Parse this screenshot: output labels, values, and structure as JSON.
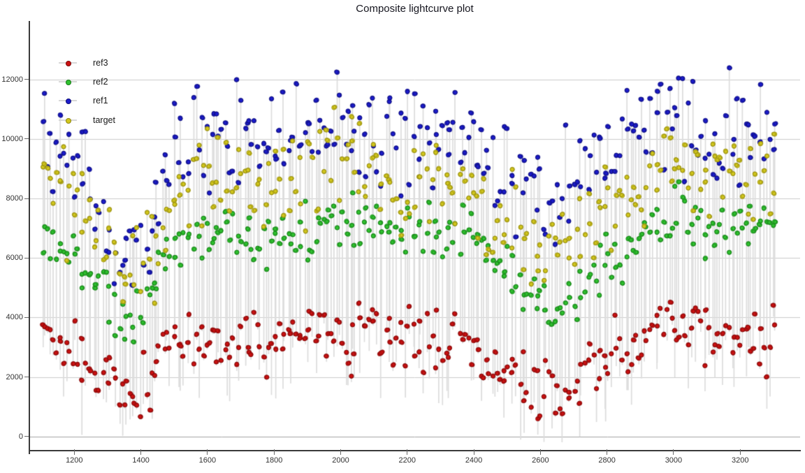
{
  "chart_data": {
    "type": "scatter",
    "title": "Composite lightcurve plot",
    "x_axis": {
      "ticks": [
        1200,
        1400,
        1600,
        1800,
        2000,
        2200,
        2400,
        2600,
        2800,
        3000,
        3200
      ],
      "xlim": [
        1065,
        3380
      ],
      "grid": false
    },
    "y_axis": {
      "ticks": [
        0,
        2000,
        4000,
        6000,
        8000,
        10000,
        12000
      ],
      "ylim": [
        -470,
        13960
      ],
      "grid": true
    },
    "legend": {
      "position": "top-left-inside",
      "items": [
        {
          "label": "ref3",
          "series": "ref3"
        },
        {
          "label": "ref2",
          "series": "ref2"
        },
        {
          "label": "ref1",
          "series": "ref1"
        },
        {
          "label": "target",
          "series": "target"
        }
      ]
    },
    "trend_x": [
      1105,
      1150,
      1200,
      1250,
      1300,
      1340,
      1380,
      1420,
      1460,
      1520,
      1580,
      1640,
      1700,
      1760,
      1820,
      1880,
      1940,
      2000,
      2060,
      2120,
      2180,
      2240,
      2300,
      2360,
      2420,
      2470,
      2520,
      2570,
      2620,
      2670,
      2720,
      2780,
      2840,
      2900,
      2960,
      3020,
      3080,
      3140,
      3200,
      3255,
      3305
    ],
    "series": [
      {
        "name": "ref3",
        "color": "#cc1111",
        "edge": "#7d0a0a",
        "sigma": 550,
        "trend_y": [
          3600,
          3300,
          2900,
          2300,
          1800,
          1400,
          1200,
          1900,
          2800,
          3100,
          3300,
          3000,
          3400,
          3200,
          3300,
          3200,
          3400,
          3300,
          3500,
          3400,
          3200,
          3300,
          3100,
          3300,
          2700,
          2100,
          1900,
          1700,
          1450,
          1400,
          2100,
          2600,
          3000,
          3400,
          3800,
          3900,
          3300,
          3100,
          3500,
          3400,
          3500
        ]
      },
      {
        "name": "ref2",
        "color": "#2fc22f",
        "edge": "#157a15",
        "sigma": 480,
        "trend_y": [
          6700,
          6500,
          6100,
          5400,
          4800,
          4200,
          3900,
          4600,
          5800,
          6500,
          6900,
          6600,
          7000,
          6800,
          6900,
          6800,
          7100,
          7000,
          7100,
          7000,
          6800,
          6900,
          6600,
          6900,
          6300,
          5600,
          5200,
          4800,
          4400,
          4300,
          5000,
          5600,
          6200,
          6700,
          7300,
          7400,
          6900,
          6700,
          7100,
          7000,
          7100
        ]
      },
      {
        "name": "target",
        "color": "#d2c71d",
        "edge": "#8f870e",
        "sigma": 850,
        "trend_y": [
          8600,
          8400,
          7900,
          7100,
          6300,
          5500,
          5100,
          5900,
          7300,
          8200,
          8700,
          8400,
          8900,
          8700,
          8800,
          8700,
          9000,
          8900,
          9100,
          9000,
          8700,
          8800,
          8500,
          8800,
          8100,
          7300,
          6800,
          6400,
          6000,
          5900,
          6700,
          7300,
          7900,
          8400,
          9200,
          9300,
          8700,
          8500,
          9000,
          8800,
          8900
        ]
      },
      {
        "name": "ref1",
        "color": "#1c1ccc",
        "edge": "#0d0d77",
        "sigma": 950,
        "trend_y": [
          9900,
          9700,
          9200,
          8400,
          7600,
          6800,
          6400,
          7300,
          8700,
          9700,
          10200,
          9900,
          10400,
          10200,
          10300,
          10200,
          10500,
          10400,
          10600,
          10600,
          10300,
          10400,
          10000,
          10300,
          9600,
          8900,
          8600,
          8300,
          8100,
          8200,
          9000,
          9600,
          10000,
          10400,
          10800,
          10800,
          10200,
          10000,
          10500,
          10300,
          10400
        ]
      }
    ],
    "scatter_render": {
      "seed": 20240917,
      "clusters": 270,
      "x_start": 1105,
      "x_end": 3305,
      "x_jitter": 5,
      "y_min_clamp": 600,
      "y_max_clamp": 13450,
      "stem_color": "#dcdcdc",
      "stem_width": 1.7,
      "dot_radius": 3.2,
      "draw_order": [
        "ref2",
        "ref1",
        "target",
        "ref3"
      ]
    },
    "colors": {
      "background": "#ffffff",
      "axis": "#3a3a3a",
      "grid": "#cbcbcb",
      "grid_zero": "#a3a3a3",
      "tick_text": "#333333",
      "title_text": "#16161f"
    }
  }
}
